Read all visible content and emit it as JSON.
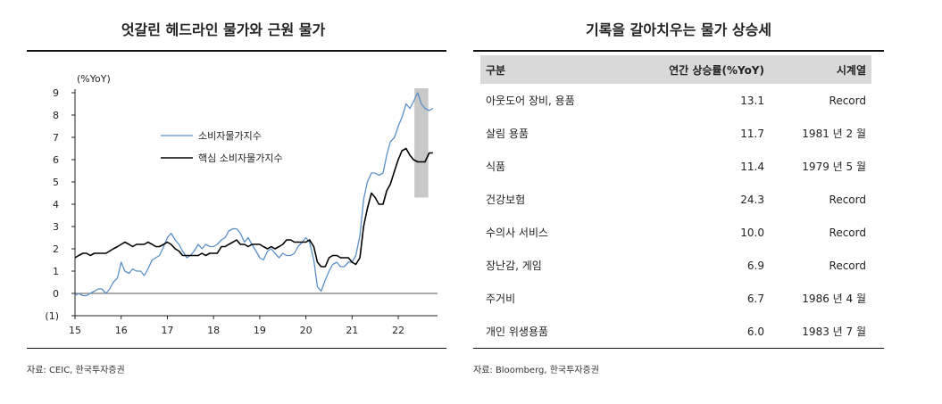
{
  "left_panel": {
    "title": "엇갈린 헤드라인 물가와 근원 물가",
    "source": "자료: CEIC, 한국투자증권"
  },
  "right_panel": {
    "title": "기록을 갈아치우는 물가 상승세",
    "source": "자료: Bloomberg, 한국투자증권",
    "columns": [
      "구분",
      "연간 상승률(%YoY)",
      "시계열"
    ],
    "rows": [
      {
        "category": "아웃도어 장비, 용품",
        "rate": "13.1",
        "series": "Record"
      },
      {
        "category": "살림 용품",
        "rate": "11.7",
        "series": "1981 년 2 월"
      },
      {
        "category": "식품",
        "rate": "11.4",
        "series": "1979 년 5 월"
      },
      {
        "category": "건강보험",
        "rate": "24.3",
        "series": "Record"
      },
      {
        "category": "수의사 서비스",
        "rate": "10.0",
        "series": "Record"
      },
      {
        "category": "장난감, 게임",
        "rate": "6.9",
        "series": "Record"
      },
      {
        "category": "주거비",
        "rate": "6.7",
        "series": "1986 년 4 월"
      },
      {
        "category": "개인 위생용품",
        "rate": "6.0",
        "series": "1983 년 7 월"
      }
    ]
  },
  "chart_data": {
    "type": "line",
    "title": "",
    "xlabel": "",
    "ylabel": "(%YoY)",
    "xlim": [
      2015,
      2022.85
    ],
    "ylim": [
      -1,
      9
    ],
    "xticks": [
      2015,
      2016,
      2017,
      2018,
      2019,
      2020,
      2021,
      2022
    ],
    "xtick_labels": [
      "15",
      "16",
      "17",
      "18",
      "19",
      "20",
      "21",
      "22"
    ],
    "yticks": [
      -1,
      0,
      1,
      2,
      3,
      4,
      5,
      6,
      7,
      8,
      9
    ],
    "ytick_labels": [
      "(1)",
      "0",
      "1",
      "2",
      "3",
      "4",
      "5",
      "6",
      "7",
      "8",
      "9"
    ],
    "legend_position": "center-left",
    "grid": false,
    "highlight": {
      "x_start": 2022.35,
      "x_end": 2022.65,
      "y_start": 4.3,
      "y_end": 9.2,
      "color": "#c8c8c8"
    },
    "series": [
      {
        "name": "소비자물가지수",
        "color": "#5b8fc7",
        "x": [
          2015.0,
          2015.08,
          2015.17,
          2015.25,
          2015.33,
          2015.42,
          2015.5,
          2015.58,
          2015.67,
          2015.75,
          2015.83,
          2015.92,
          2016.0,
          2016.08,
          2016.17,
          2016.25,
          2016.33,
          2016.42,
          2016.5,
          2016.58,
          2016.67,
          2016.75,
          2016.83,
          2016.92,
          2017.0,
          2017.08,
          2017.17,
          2017.25,
          2017.33,
          2017.42,
          2017.5,
          2017.58,
          2017.67,
          2017.75,
          2017.83,
          2017.92,
          2018.0,
          2018.08,
          2018.17,
          2018.25,
          2018.33,
          2018.42,
          2018.5,
          2018.58,
          2018.67,
          2018.75,
          2018.83,
          2018.92,
          2019.0,
          2019.08,
          2019.17,
          2019.25,
          2019.33,
          2019.42,
          2019.5,
          2019.58,
          2019.67,
          2019.75,
          2019.83,
          2019.92,
          2020.0,
          2020.08,
          2020.17,
          2020.25,
          2020.33,
          2020.42,
          2020.5,
          2020.58,
          2020.67,
          2020.75,
          2020.83,
          2020.92,
          2021.0,
          2021.08,
          2021.17,
          2021.25,
          2021.33,
          2021.42,
          2021.5,
          2021.58,
          2021.67,
          2021.75,
          2021.83,
          2021.92,
          2022.0,
          2022.08,
          2022.17,
          2022.25,
          2022.33,
          2022.42,
          2022.5,
          2022.58,
          2022.67,
          2022.75
        ],
        "values": [
          -0.1,
          0.0,
          -0.1,
          -0.1,
          0.0,
          0.1,
          0.2,
          0.2,
          0.0,
          0.2,
          0.5,
          0.7,
          1.4,
          1.0,
          0.9,
          1.1,
          1.0,
          1.0,
          0.8,
          1.1,
          1.5,
          1.6,
          1.7,
          2.1,
          2.5,
          2.7,
          2.4,
          2.2,
          1.9,
          1.6,
          1.7,
          1.9,
          2.2,
          2.0,
          2.2,
          2.1,
          2.1,
          2.2,
          2.4,
          2.5,
          2.8,
          2.9,
          2.9,
          2.7,
          2.3,
          2.5,
          2.2,
          1.9,
          1.6,
          1.5,
          1.9,
          2.0,
          1.8,
          1.6,
          1.8,
          1.7,
          1.7,
          1.8,
          2.1,
          2.3,
          2.5,
          2.3,
          1.5,
          0.3,
          0.1,
          0.6,
          1.0,
          1.3,
          1.4,
          1.2,
          1.2,
          1.4,
          1.4,
          1.7,
          2.6,
          4.2,
          5.0,
          5.4,
          5.4,
          5.3,
          5.4,
          6.2,
          6.8,
          7.0,
          7.5,
          7.9,
          8.5,
          8.3,
          8.6,
          9.0,
          8.5,
          8.3,
          8.2,
          8.3
        ]
      },
      {
        "name": "핵심 소비자물가지수",
        "color": "#000000",
        "x": [
          2015.0,
          2015.08,
          2015.17,
          2015.25,
          2015.33,
          2015.42,
          2015.5,
          2015.58,
          2015.67,
          2015.75,
          2015.83,
          2015.92,
          2016.0,
          2016.08,
          2016.17,
          2016.25,
          2016.33,
          2016.42,
          2016.5,
          2016.58,
          2016.67,
          2016.75,
          2016.83,
          2016.92,
          2017.0,
          2017.08,
          2017.17,
          2017.25,
          2017.33,
          2017.42,
          2017.5,
          2017.58,
          2017.67,
          2017.75,
          2017.83,
          2017.92,
          2018.0,
          2018.08,
          2018.17,
          2018.25,
          2018.33,
          2018.42,
          2018.5,
          2018.58,
          2018.67,
          2018.75,
          2018.83,
          2018.92,
          2019.0,
          2019.08,
          2019.17,
          2019.25,
          2019.33,
          2019.42,
          2019.5,
          2019.58,
          2019.67,
          2019.75,
          2019.83,
          2019.92,
          2020.0,
          2020.08,
          2020.17,
          2020.25,
          2020.33,
          2020.42,
          2020.5,
          2020.58,
          2020.67,
          2020.75,
          2020.83,
          2020.92,
          2021.0,
          2021.08,
          2021.17,
          2021.25,
          2021.33,
          2021.42,
          2021.5,
          2021.58,
          2021.67,
          2021.75,
          2021.83,
          2021.92,
          2022.0,
          2022.08,
          2022.17,
          2022.25,
          2022.33,
          2022.42,
          2022.5,
          2022.58,
          2022.67,
          2022.75
        ],
        "values": [
          1.6,
          1.7,
          1.8,
          1.8,
          1.7,
          1.8,
          1.8,
          1.8,
          1.8,
          1.9,
          2.0,
          2.1,
          2.2,
          2.3,
          2.2,
          2.1,
          2.2,
          2.2,
          2.2,
          2.3,
          2.2,
          2.1,
          2.1,
          2.2,
          2.3,
          2.2,
          2.0,
          1.9,
          1.7,
          1.7,
          1.7,
          1.7,
          1.7,
          1.8,
          1.7,
          1.8,
          1.8,
          1.8,
          2.1,
          2.1,
          2.2,
          2.3,
          2.4,
          2.2,
          2.2,
          2.1,
          2.2,
          2.2,
          2.2,
          2.1,
          2.0,
          2.1,
          2.0,
          2.1,
          2.2,
          2.4,
          2.4,
          2.3,
          2.3,
          2.3,
          2.3,
          2.4,
          2.1,
          1.4,
          1.2,
          1.2,
          1.6,
          1.7,
          1.7,
          1.6,
          1.6,
          1.6,
          1.4,
          1.3,
          1.6,
          3.0,
          3.8,
          4.5,
          4.3,
          4.0,
          4.0,
          4.6,
          4.9,
          5.5,
          6.0,
          6.4,
          6.5,
          6.2,
          6.0,
          5.9,
          5.9,
          5.9,
          6.3,
          6.3
        ]
      }
    ]
  }
}
